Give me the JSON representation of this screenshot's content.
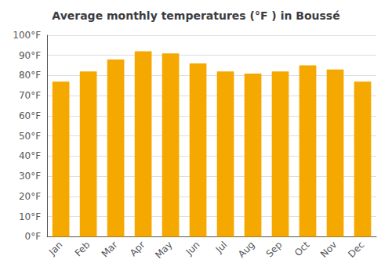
{
  "chart_data": {
    "type": "bar",
    "title": "Average monthly temperatures (°F ) in Boussé",
    "categories": [
      "Jan",
      "Feb",
      "Mar",
      "Apr",
      "May",
      "Jun",
      "Jul",
      "Aug",
      "Sep",
      "Oct",
      "Nov",
      "Dec"
    ],
    "values": [
      77,
      82,
      88,
      92,
      91,
      86,
      82,
      81,
      82,
      85,
      83,
      77
    ],
    "color": "#F5A800",
    "ylim": [
      0,
      100
    ],
    "yticks": [
      {
        "value": 0,
        "label": "0°F"
      },
      {
        "value": 10,
        "label": "10°F"
      },
      {
        "value": 20,
        "label": "20°F"
      },
      {
        "value": 30,
        "label": "30°F"
      },
      {
        "value": 40,
        "label": "40°F"
      },
      {
        "value": 50,
        "label": "50°F"
      },
      {
        "value": 60,
        "label": "60°F"
      },
      {
        "value": 70,
        "label": "70°F"
      },
      {
        "value": 80,
        "label": "80°F"
      },
      {
        "value": 90,
        "label": "90°F"
      },
      {
        "value": 100,
        "label": "100°F"
      }
    ],
    "grid": true
  }
}
